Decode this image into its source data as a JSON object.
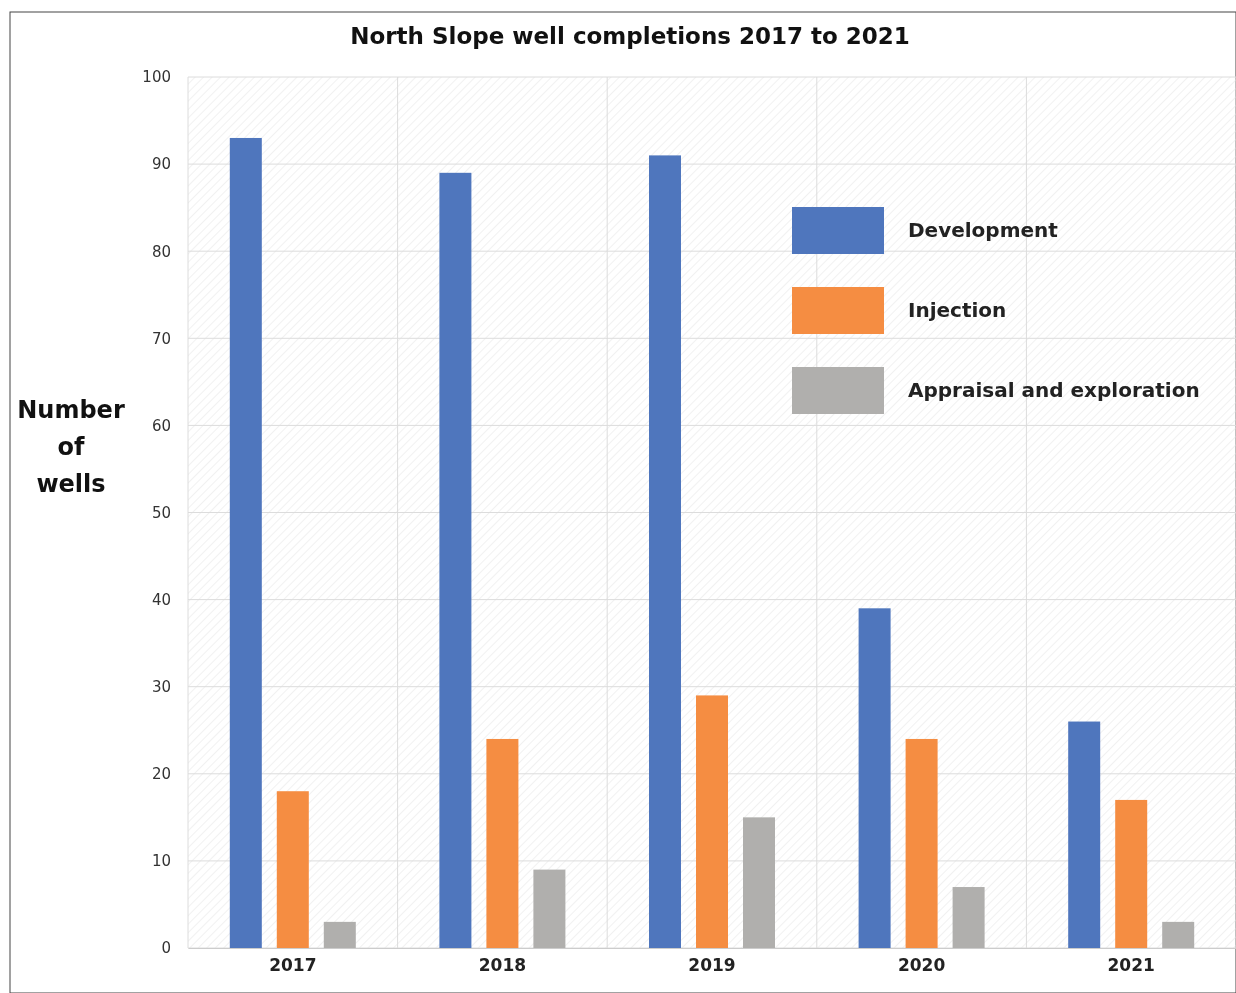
{
  "chart_data": {
    "type": "bar",
    "title": "North Slope well completions 2017 to 2021",
    "ylabel": "Number of wells",
    "categories": [
      "2017",
      "2018",
      "2019",
      "2020",
      "2021"
    ],
    "series": [
      {
        "name": "Development",
        "color": "#4f76bd",
        "values": [
          93,
          89,
          91,
          39,
          26
        ]
      },
      {
        "name": "Injection",
        "color": "#f58d42",
        "values": [
          18,
          24,
          29,
          24,
          17
        ]
      },
      {
        "name": "Appraisal and exploration",
        "color": "#b0afad",
        "values": [
          3,
          9,
          15,
          7,
          3
        ]
      }
    ],
    "ylim": [
      0,
      100
    ],
    "yticks": [
      0,
      10,
      20,
      30,
      40,
      50,
      60,
      70,
      80,
      90,
      100
    ],
    "grid": true,
    "legend": "top right"
  }
}
